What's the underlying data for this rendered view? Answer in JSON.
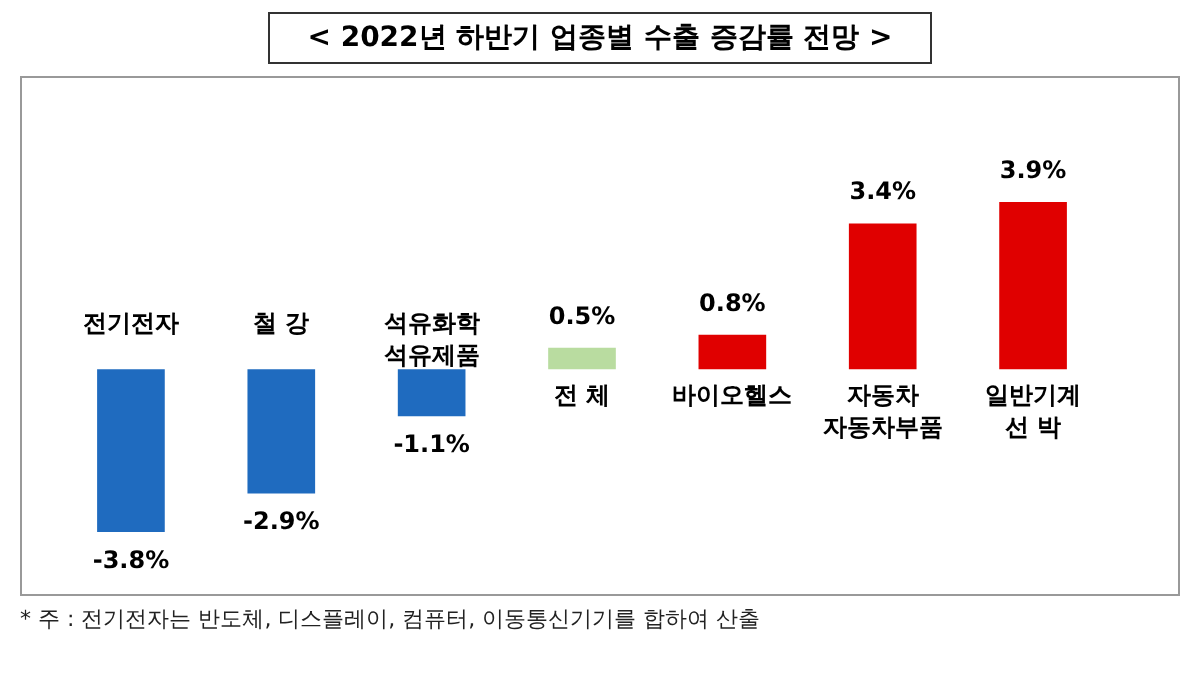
{
  "chart_data": {
    "type": "bar",
    "title": "< 2022년 하반기 업종별 수출 증감률 전망 >",
    "categories": [
      "전기전자",
      "철 강",
      "석유화학\n석유제품",
      "전 체",
      "바이오헬스",
      "자동차\n자동차부품",
      "일반기계\n선 박"
    ],
    "values": [
      -3.8,
      -2.9,
      -1.1,
      0.5,
      0.8,
      3.4,
      3.9
    ],
    "colors": [
      "#1f6bbf",
      "#1f6bbf",
      "#1f6bbf",
      "#b9dca0",
      "#e00000",
      "#e00000",
      "#e00000"
    ],
    "value_labels": [
      "-3.8%",
      "-2.9%",
      "-1.1%",
      "0.5%",
      "0.8%",
      "3.4%",
      "3.9%"
    ],
    "annotations": [
      "* 주 : 전기전자는 반도체, 디스플레이, 컴퓨터, 이동통신기기를 합하여 산출"
    ]
  }
}
